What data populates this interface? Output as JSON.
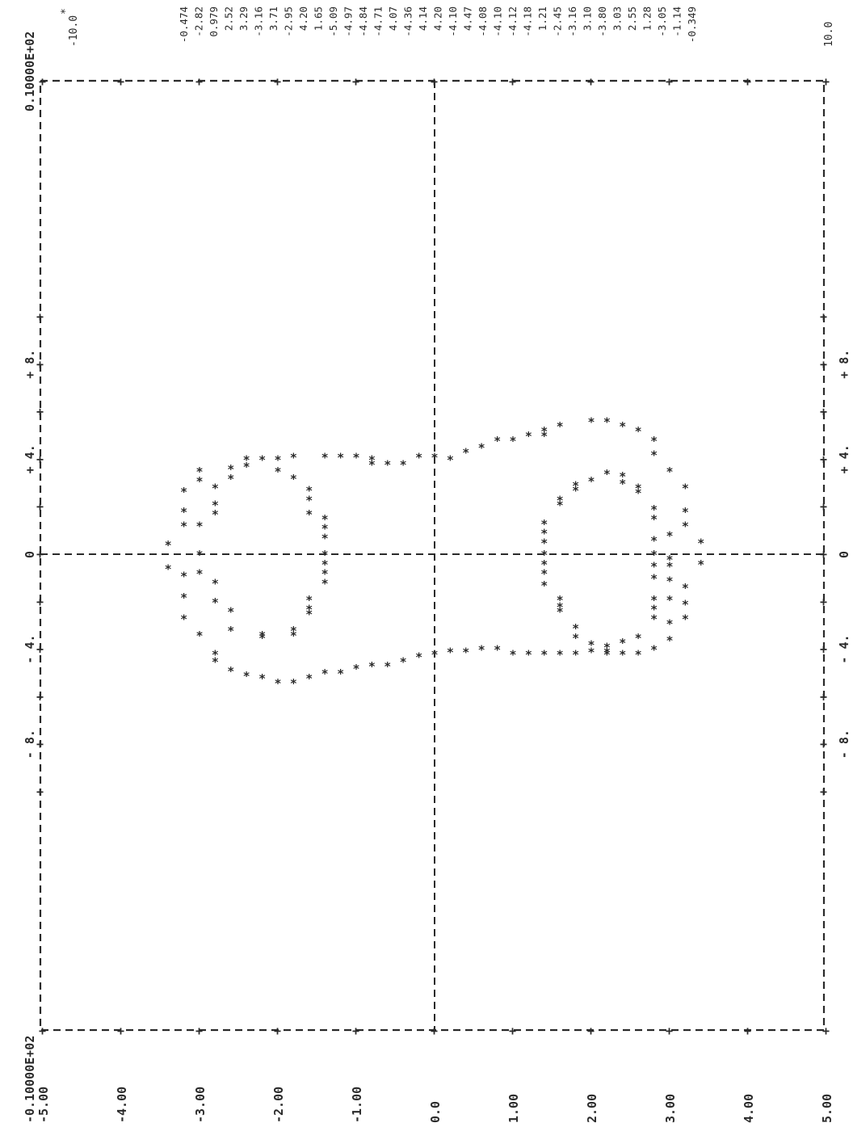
{
  "chart_data": {
    "type": "scatter",
    "marker": "*",
    "orientation": "rotated (data x runs down the page, data y runs right-to-left)",
    "x_tick_labels": [
      "-5.00",
      "-4.00",
      "-3.00",
      "-2.00",
      "-1.00",
      "0.0",
      "1.00",
      "2.00",
      "3.00",
      "4.00",
      "5.00"
    ],
    "xlim": [
      -5.0,
      5.0
    ],
    "y_range_labels": [
      "-0.10000E+02",
      "0.10000E+02"
    ],
    "y_axis_marks_left": [
      "8.",
      "4.",
      "0",
      "4.",
      "8."
    ],
    "y_axis_marks_right": [
      "8.",
      "4.",
      "0",
      "4.",
      "8."
    ],
    "ylim": [
      -10.0,
      10.0
    ],
    "range_min_label": "-10.0",
    "range_max_label": "10.0",
    "value_column": [
      "-0.474",
      "-2.82",
      "0.979",
      "2.52",
      "3.29",
      "-3.16",
      "3.71",
      "-2.95",
      "4.20",
      "1.65",
      "-5.09",
      "-4.97",
      "-4.84",
      "-4.71",
      "4.07",
      "-4.36",
      "4.14",
      "4.20",
      "-4.10",
      "4.47",
      "-4.08",
      "-4.10",
      "-4.12",
      "-4.18",
      "1.21",
      "-2.45",
      "-3.16",
      "3.10",
      "-3.80",
      "3.03",
      "2.55",
      "1.28",
      "-3.05",
      "-1.14",
      "-0.349"
    ],
    "series": [
      {
        "points": [
          [
            -3.4,
            -0.6
          ],
          [
            -3.4,
            0.4
          ],
          [
            -3.2,
            -0.9
          ],
          [
            -3.2,
            1.2
          ],
          [
            -3.2,
            1.8
          ],
          [
            -3.2,
            -1.8
          ],
          [
            -3.2,
            2.65
          ],
          [
            -3.2,
            -2.7
          ],
          [
            -3.0,
            0.0
          ],
          [
            -3.0,
            -0.8
          ],
          [
            -3.0,
            1.2
          ],
          [
            -3.0,
            3.1
          ],
          [
            -3.0,
            3.5
          ],
          [
            -3.0,
            -3.4
          ],
          [
            -2.8,
            -1.2
          ],
          [
            -2.8,
            1.7
          ],
          [
            -2.8,
            -2.0
          ],
          [
            -2.8,
            2.1
          ],
          [
            -2.8,
            2.8
          ],
          [
            -2.8,
            -4.2
          ],
          [
            -2.8,
            -4.5
          ],
          [
            -2.6,
            -2.4
          ],
          [
            -2.6,
            -3.2
          ],
          [
            -2.6,
            3.2
          ],
          [
            -2.6,
            3.6
          ],
          [
            -2.6,
            -4.9
          ],
          [
            -2.4,
            4.0
          ],
          [
            -2.4,
            3.7
          ],
          [
            -2.4,
            -5.1
          ],
          [
            -2.2,
            4.0
          ],
          [
            -2.2,
            -3.4
          ],
          [
            -2.2,
            -3.5
          ],
          [
            -2.2,
            -5.2
          ],
          [
            -2.0,
            4.0
          ],
          [
            -2.0,
            3.5
          ],
          [
            -2.0,
            -5.4
          ],
          [
            -1.8,
            4.1
          ],
          [
            -1.8,
            3.2
          ],
          [
            -1.8,
            -3.2
          ],
          [
            -1.8,
            -3.4
          ],
          [
            -1.8,
            -5.4
          ],
          [
            -1.6,
            2.7
          ],
          [
            -1.6,
            2.3
          ],
          [
            -1.6,
            1.7
          ],
          [
            -1.6,
            -1.9
          ],
          [
            -1.6,
            -2.3
          ],
          [
            -1.6,
            -2.5
          ],
          [
            -1.6,
            -5.2
          ],
          [
            -1.4,
            4.1
          ],
          [
            -1.4,
            1.5
          ],
          [
            -1.4,
            1.1
          ],
          [
            -1.4,
            0.7
          ],
          [
            -1.4,
            0.0
          ],
          [
            -1.4,
            -0.4
          ],
          [
            -1.4,
            -0.8
          ],
          [
            -1.4,
            -1.2
          ],
          [
            -1.4,
            -5.0
          ],
          [
            -1.2,
            4.1
          ],
          [
            -1.2,
            -5.0
          ],
          [
            -1.0,
            4.1
          ],
          [
            -1.0,
            -4.8
          ],
          [
            -0.8,
            4.0
          ],
          [
            -0.8,
            3.8
          ],
          [
            -0.8,
            -4.7
          ],
          [
            -0.6,
            3.8
          ],
          [
            -0.6,
            -4.7
          ],
          [
            -0.4,
            3.8
          ],
          [
            -0.4,
            -4.5
          ],
          [
            -0.2,
            4.1
          ],
          [
            -0.2,
            -4.3
          ],
          [
            0.0,
            4.1
          ],
          [
            0.0,
            -4.2
          ],
          [
            0.2,
            4.0
          ],
          [
            0.2,
            -4.1
          ],
          [
            0.4,
            4.3
          ],
          [
            0.4,
            -4.1
          ],
          [
            0.6,
            4.5
          ],
          [
            0.6,
            -4.0
          ],
          [
            0.8,
            4.8
          ],
          [
            0.8,
            -4.0
          ],
          [
            1.0,
            4.8
          ],
          [
            1.0,
            -4.2
          ],
          [
            1.2,
            5.0
          ],
          [
            1.2,
            -4.2
          ],
          [
            1.4,
            5.0
          ],
          [
            1.4,
            5.2
          ],
          [
            1.4,
            1.3
          ],
          [
            1.4,
            0.9
          ],
          [
            1.4,
            0.5
          ],
          [
            1.4,
            0.0
          ],
          [
            1.4,
            -0.4
          ],
          [
            1.4,
            -0.8
          ],
          [
            1.4,
            -1.3
          ],
          [
            1.4,
            -4.2
          ],
          [
            1.6,
            5.4
          ],
          [
            1.6,
            2.3
          ],
          [
            1.6,
            2.1
          ],
          [
            1.6,
            -1.9
          ],
          [
            1.6,
            -2.2
          ],
          [
            1.6,
            -2.4
          ],
          [
            1.6,
            -4.2
          ],
          [
            1.8,
            2.9
          ],
          [
            1.8,
            2.7
          ],
          [
            1.8,
            -3.1
          ],
          [
            1.8,
            -3.5
          ],
          [
            1.8,
            -4.2
          ],
          [
            2.0,
            5.6
          ],
          [
            2.0,
            3.1
          ],
          [
            2.0,
            -3.8
          ],
          [
            2.0,
            -4.1
          ],
          [
            2.2,
            5.6
          ],
          [
            2.2,
            3.4
          ],
          [
            2.2,
            -3.9
          ],
          [
            2.2,
            -4.2
          ],
          [
            2.2,
            -4.1
          ],
          [
            2.4,
            5.4
          ],
          [
            2.4,
            3.3
          ],
          [
            2.4,
            3.0
          ],
          [
            2.4,
            -3.7
          ],
          [
            2.4,
            -4.2
          ],
          [
            2.6,
            5.2
          ],
          [
            2.6,
            2.8
          ],
          [
            2.6,
            2.6
          ],
          [
            2.6,
            -3.5
          ],
          [
            2.6,
            -4.2
          ],
          [
            2.8,
            4.8
          ],
          [
            2.8,
            4.2
          ],
          [
            2.8,
            1.9
          ],
          [
            2.8,
            1.5
          ],
          [
            2.8,
            0.6
          ],
          [
            2.8,
            0.0
          ],
          [
            2.8,
            -0.5
          ],
          [
            2.8,
            -1.0
          ],
          [
            2.8,
            -1.9
          ],
          [
            2.8,
            -2.3
          ],
          [
            2.8,
            -2.7
          ],
          [
            2.8,
            -4.0
          ],
          [
            3.0,
            3.5
          ],
          [
            3.0,
            0.8
          ],
          [
            3.0,
            -0.2
          ],
          [
            3.0,
            -0.5
          ],
          [
            3.0,
            -1.1
          ],
          [
            3.0,
            -1.9
          ],
          [
            3.0,
            -2.9
          ],
          [
            3.0,
            -3.6
          ],
          [
            3.2,
            2.8
          ],
          [
            3.2,
            1.8
          ],
          [
            3.2,
            1.2
          ],
          [
            3.2,
            -1.4
          ],
          [
            3.2,
            -2.1
          ],
          [
            3.2,
            -2.7
          ],
          [
            3.4,
            0.5
          ],
          [
            3.4,
            -0.4
          ]
        ]
      }
    ]
  }
}
